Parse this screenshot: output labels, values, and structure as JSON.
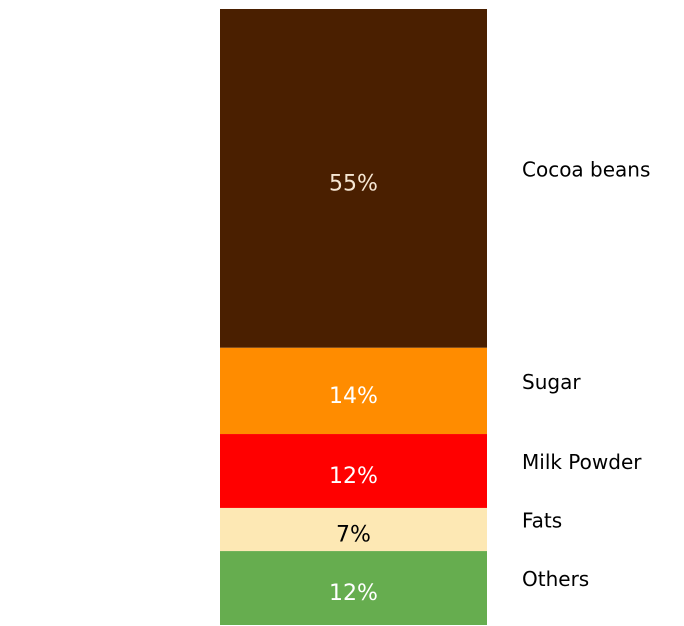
{
  "chart_data": {
    "type": "bar",
    "stacked": true,
    "grid": false,
    "legend": "right",
    "categories": [
      ""
    ],
    "series": [
      {
        "name": "Cocoa beans",
        "values": [
          55
        ],
        "label": "55%",
        "color": "#4a1f00",
        "label_color": "#f5e6d3"
      },
      {
        "name": "Sugar",
        "values": [
          14
        ],
        "label": "14%",
        "color": "#ff8c00",
        "label_color": "#ffffff"
      },
      {
        "name": "Milk Powder",
        "values": [
          12
        ],
        "label": "12%",
        "color": "#ff0000",
        "label_color": "#ffffff"
      },
      {
        "name": "Fats",
        "values": [
          7
        ],
        "label": "7%",
        "color": "#fde8b4",
        "label_color": "#000000"
      },
      {
        "name": "Others",
        "values": [
          12
        ],
        "label": "12%",
        "color": "#66ad4f",
        "label_color": "#ffffff"
      }
    ],
    "title": "",
    "xlabel": "",
    "ylabel": "",
    "ylim": [
      0,
      100
    ]
  }
}
